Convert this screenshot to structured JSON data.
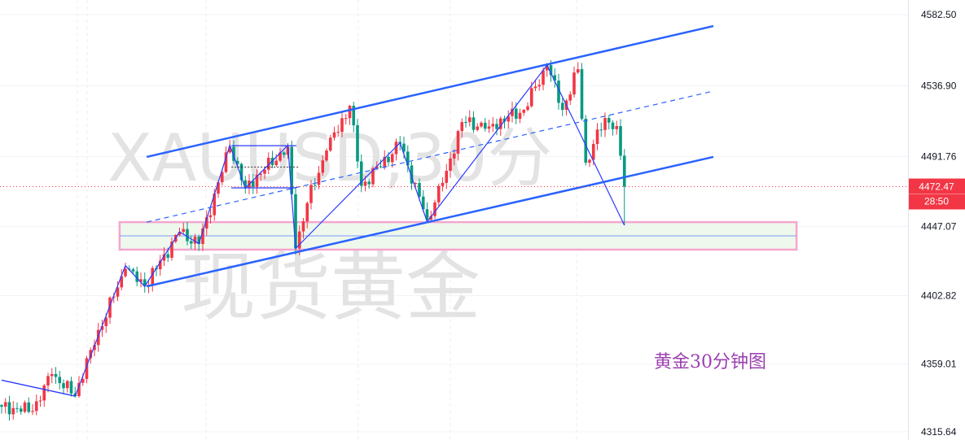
{
  "symbol_watermark": "XAUUSD,30分",
  "name_watermark": "现货黄金",
  "annotation": "黄金30分钟图",
  "colors": {
    "up": "#f23645",
    "down": "#089981",
    "channel": "#2962ff",
    "zigzag": "#2b3bff",
    "zone_border": "#f4a6d0",
    "zone_fill": "#eef8ec",
    "price_line": "#f23645"
  },
  "chart_data": {
    "type": "candlestick",
    "title": "",
    "y_axis": {
      "position": "right",
      "ticks": [
        "4582.50",
        "4536.90",
        "4491.76",
        "4447.07",
        "4402.82",
        "4359.01",
        "4315.64"
      ],
      "range": [
        4315.64,
        4582.5
      ]
    },
    "grid": true,
    "last_price": {
      "value": "4472.47",
      "countdown": "28:50"
    },
    "swing_points": [
      {
        "bar": 0,
        "price": 4331.8
      },
      {
        "bar": 8,
        "price": 4329
      },
      {
        "bar": 13,
        "price": 4352.6
      },
      {
        "bar": 19,
        "price": 4338.5
      },
      {
        "bar": 23,
        "price": 4368
      },
      {
        "bar": 32,
        "price": 4420
      },
      {
        "bar": 37,
        "price": 4408.7
      },
      {
        "bar": 46,
        "price": 4443.6
      },
      {
        "bar": 51,
        "price": 4435.8
      },
      {
        "bar": 59,
        "price": 4498
      },
      {
        "bar": 63,
        "price": 4472
      },
      {
        "bar": 74,
        "price": 4498
      },
      {
        "bar": 76,
        "price": 4433
      },
      {
        "bar": 79,
        "price": 4462
      },
      {
        "bar": 84,
        "price": 4495.6
      },
      {
        "bar": 90,
        "price": 4524.2
      },
      {
        "bar": 93,
        "price": 4473
      },
      {
        "bar": 103,
        "price": 4500
      },
      {
        "bar": 110,
        "price": 4451.4
      },
      {
        "bar": 115,
        "price": 4482.6
      },
      {
        "bar": 119,
        "price": 4513.8
      },
      {
        "bar": 126,
        "price": 4511
      },
      {
        "bar": 135,
        "price": 4521.6
      },
      {
        "bar": 141,
        "price": 4550.2
      },
      {
        "bar": 145,
        "price": 4521.6
      },
      {
        "bar": 149,
        "price": 4547.6
      },
      {
        "bar": 151,
        "price": 4487.8
      },
      {
        "bar": 156,
        "price": 4516.4
      },
      {
        "bar": 159,
        "price": 4511.2
      },
      {
        "bar": 161,
        "price": 4472.47
      }
    ],
    "zigzag": [
      {
        "bar": 19,
        "price": 4338.5
      },
      {
        "bar": 32,
        "price": 4422
      },
      {
        "bar": 37,
        "price": 4408.7
      },
      {
        "bar": 46,
        "price": 4443.6
      },
      {
        "bar": 51,
        "price": 4436
      },
      {
        "bar": 59,
        "price": 4499
      },
      {
        "bar": 63,
        "price": 4471.5
      },
      {
        "bar": 74,
        "price": 4499
      },
      {
        "bar": 76,
        "price": 4433
      },
      {
        "bar": 103,
        "price": 4500.5
      },
      {
        "bar": 110,
        "price": 4450
      },
      {
        "bar": 141,
        "price": 4550.2
      },
      {
        "bar": 161,
        "price": 4447.8
      }
    ],
    "left_trendline": [
      {
        "bar": 0,
        "price": 4348.7
      },
      {
        "bar": 19,
        "price": 4338.5
      }
    ],
    "channel": {
      "upper": [
        {
          "bar": 37.5,
          "price": 4491.5
        },
        {
          "bar": 184,
          "price": 4575.2
        }
      ],
      "middle": [
        {
          "bar": 37.5,
          "price": 4449.8
        },
        {
          "bar": 184,
          "price": 4533.6
        }
      ],
      "lower": [
        {
          "bar": 37.5,
          "price": 4408.7
        },
        {
          "bar": 184,
          "price": 4491.5
        }
      ]
    },
    "support_zone": {
      "top": 4449.8,
      "bottom": 4432.2,
      "mid": 4441,
      "from_bar": 30.5,
      "to_bar": 205.5
    },
    "consolidation_box": {
      "top": 4498.7,
      "bottom": 4471.7,
      "mid": 4485,
      "from_bar": 59.4,
      "to_bar": 76.2
    }
  }
}
